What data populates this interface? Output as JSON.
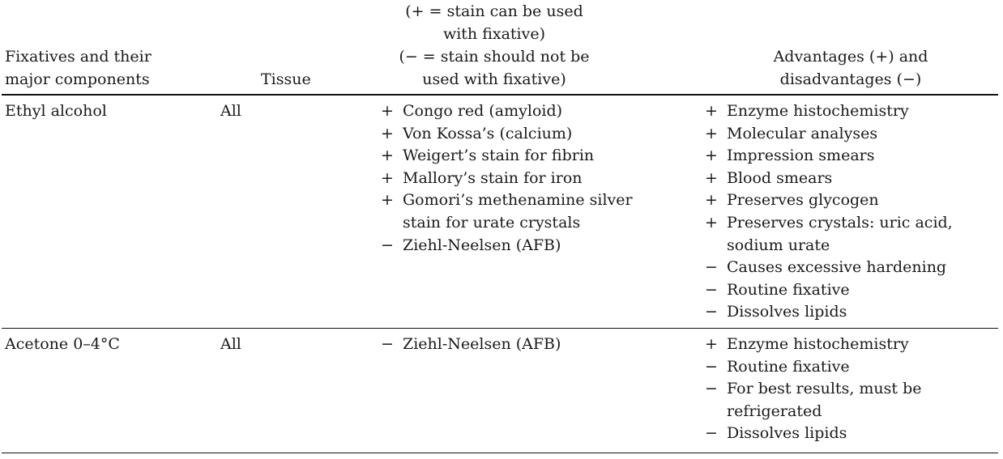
{
  "header": {
    "col1": [
      "Fixatives and their",
      "major components"
    ],
    "col2": [
      "Tissue"
    ],
    "col3": [
      "(+ = stain can be used",
      "with fixative)",
      "(− = stain should not be",
      "used with fixative)"
    ],
    "col4": [
      "Advantages (+) and",
      "disadvantages (−)"
    ]
  },
  "rows": [
    {
      "fixative": "Ethyl alcohol",
      "tissue": "All",
      "stains": [
        {
          "sign": "+",
          "text": "Congo red (amyloid)"
        },
        {
          "sign": "+",
          "text": "Von Kossa’s (calcium)"
        },
        {
          "sign": "+",
          "text": "Weigert’s stain for fibrin"
        },
        {
          "sign": "+",
          "text": "Mallory’s stain for iron"
        },
        {
          "sign": "+",
          "text": "Gomori’s methenamine silver"
        },
        {
          "sign": "",
          "text": "stain for urate crystals"
        },
        {
          "sign": "−",
          "text": "Ziehl-Neelsen (AFB)"
        }
      ],
      "notes": [
        {
          "sign": "+",
          "text": "Enzyme histochemistry"
        },
        {
          "sign": "+",
          "text": "Molecular analyses"
        },
        {
          "sign": "+",
          "text": "Impression smears"
        },
        {
          "sign": "+",
          "text": "Blood smears"
        },
        {
          "sign": "+",
          "text": "Preserves glycogen"
        },
        {
          "sign": "+",
          "text": "Preserves crystals: uric acid,"
        },
        {
          "sign": "",
          "text": "sodium urate"
        },
        {
          "sign": "−",
          "text": "Causes excessive hardening"
        },
        {
          "sign": "−",
          "text": "Routine fixative"
        },
        {
          "sign": "−",
          "text": "Dissolves lipids"
        }
      ]
    },
    {
      "fixative": "Acetone 0–4°C",
      "tissue": "All",
      "stains": [
        {
          "sign": "−",
          "text": "Ziehl-Neelsen (AFB)"
        }
      ],
      "notes": [
        {
          "sign": "+",
          "text": "Enzyme histochemistry"
        },
        {
          "sign": "−",
          "text": "Routine fixative"
        },
        {
          "sign": "−",
          "text": "For best results, must be"
        },
        {
          "sign": "",
          "text": "refrigerated"
        },
        {
          "sign": "−",
          "text": "Dissolves lipids"
        }
      ]
    }
  ]
}
